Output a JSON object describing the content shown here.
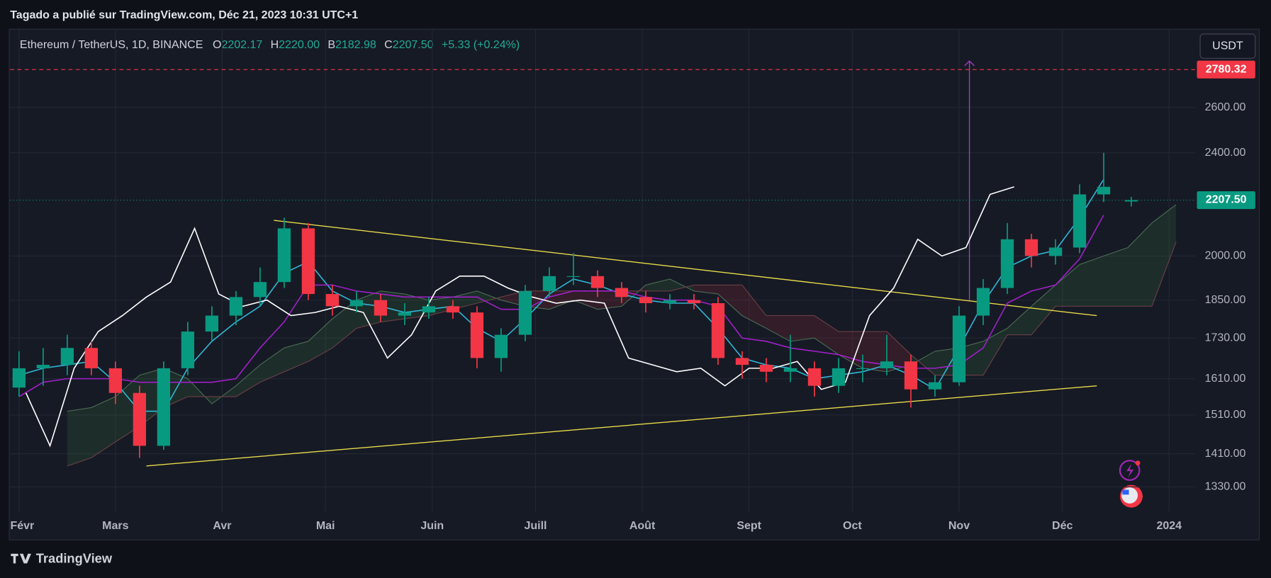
{
  "header": {
    "published": "Tagado a publié sur TradingView.com, Déc 21, 2023 10:31 UTC+1",
    "symbol": "Ethereum / TetherUS, 1D, BINANCE",
    "open_key": "O",
    "open": "2202.17",
    "high_key": "H",
    "high": "2220.00",
    "low_key": "B",
    "low": "2182.98",
    "close_key": "C",
    "close": "2207.50",
    "change": "+5.33 (+0.24%)",
    "currency": "USDT",
    "footer": "TradingView"
  },
  "chart_data": {
    "type": "candlestick",
    "ylog": true,
    "grid": true,
    "up_color": "#089981",
    "down_color": "#f23645",
    "xlim": [
      -2.6,
      341.6
    ],
    "xticks": [
      {
        "value": 0,
        "label": "Févr"
      },
      {
        "value": 28,
        "label": "Mars"
      },
      {
        "value": 59,
        "label": "Avr"
      },
      {
        "value": 89,
        "label": "Mai"
      },
      {
        "value": 120,
        "label": "Juin"
      },
      {
        "value": 150,
        "label": "Juill"
      },
      {
        "value": 181,
        "label": "Août"
      },
      {
        "value": 212,
        "label": "Sept"
      },
      {
        "value": 242,
        "label": "Oct"
      },
      {
        "value": 273,
        "label": "Nov"
      },
      {
        "value": 303,
        "label": "Déc"
      },
      {
        "value": 334,
        "label": "2024"
      }
    ],
    "ylim": [
      1273,
      2982
    ],
    "yticks": [
      {
        "value": 1330,
        "label": "1330.00"
      },
      {
        "value": 1410,
        "label": "1410.00"
      },
      {
        "value": 1510,
        "label": "1510.00"
      },
      {
        "value": 1610,
        "label": "1610.00"
      },
      {
        "value": 1730,
        "label": "1730.00"
      },
      {
        "value": 1850,
        "label": "1850.00"
      },
      {
        "value": 2000,
        "label": "2000.00"
      },
      {
        "value": 2400,
        "label": "2400.00"
      },
      {
        "value": 2600,
        "label": "2600.00"
      }
    ],
    "x": [
      0,
      7,
      14,
      21,
      28,
      35,
      42,
      49,
      56,
      63,
      70,
      77,
      84,
      91,
      98,
      105,
      112,
      119,
      126,
      133,
      140,
      147,
      154,
      161,
      168,
      175,
      182,
      189,
      196,
      203,
      210,
      217,
      224,
      231,
      238,
      245,
      252,
      259,
      266,
      273,
      280,
      287,
      294,
      301,
      308,
      315,
      323
    ],
    "open": [
      1585,
      1640,
      1650,
      1700,
      1640,
      1570,
      1430,
      1640,
      1750,
      1800,
      1860,
      1910,
      2100,
      1870,
      1830,
      1850,
      1800,
      1810,
      1830,
      1810,
      1670,
      1740,
      1880,
      1930,
      1930,
      1890,
      1860,
      1840,
      1850,
      1840,
      1670,
      1650,
      1630,
      1640,
      1590,
      1640,
      1640,
      1660,
      1580,
      1600,
      1800,
      1890,
      2060,
      2000,
      2030,
      2230,
      2202.17
    ],
    "high": [
      1690,
      1700,
      1740,
      1720,
      1660,
      1590,
      1660,
      1780,
      1830,
      1880,
      1960,
      2140,
      2120,
      1900,
      1880,
      1870,
      1840,
      1860,
      1850,
      1830,
      1760,
      1900,
      1960,
      2010,
      1950,
      1910,
      1880,
      1870,
      1870,
      1860,
      1690,
      1670,
      1740,
      1660,
      1670,
      1680,
      1740,
      1680,
      1620,
      1830,
      1920,
      2120,
      2080,
      2060,
      2270,
      2400,
      2220
    ],
    "low": [
      1560,
      1590,
      1620,
      1620,
      1540,
      1400,
      1420,
      1620,
      1720,
      1770,
      1830,
      1890,
      1850,
      1800,
      1810,
      1780,
      1770,
      1790,
      1790,
      1640,
      1630,
      1720,
      1860,
      1900,
      1860,
      1840,
      1810,
      1820,
      1820,
      1650,
      1610,
      1600,
      1600,
      1560,
      1570,
      1600,
      1620,
      1530,
      1560,
      1590,
      1770,
      1870,
      1960,
      1970,
      2010,
      2200,
      2182.98
    ],
    "close": [
      1640,
      1650,
      1700,
      1640,
      1570,
      1430,
      1640,
      1750,
      1800,
      1860,
      1910,
      2100,
      1870,
      1830,
      1850,
      1800,
      1810,
      1830,
      1810,
      1670,
      1740,
      1880,
      1930,
      1930,
      1890,
      1860,
      1840,
      1850,
      1840,
      1670,
      1650,
      1630,
      1640,
      1590,
      1640,
      1640,
      1660,
      1580,
      1600,
      1800,
      1890,
      2060,
      2000,
      2030,
      2230,
      2260,
      2207.5
    ],
    "cloud": {
      "up_color": "rgba(76,175,80,0.13)",
      "down_color": "rgba(242,54,69,0.13)",
      "a_color": "#4a6b52",
      "b_color": "#6b3f45",
      "x": [
        14,
        21,
        28,
        35,
        42,
        49,
        56,
        63,
        70,
        77,
        84,
        91,
        98,
        105,
        112,
        119,
        126,
        133,
        140,
        147,
        154,
        161,
        168,
        175,
        182,
        189,
        196,
        203,
        210,
        217,
        224,
        231,
        238,
        245,
        252,
        259,
        266,
        273,
        280,
        287,
        294,
        301,
        308,
        315,
        322,
        329,
        336
      ],
      "span_a": [
        1520,
        1530,
        1560,
        1620,
        1640,
        1610,
        1540,
        1590,
        1650,
        1700,
        1720,
        1790,
        1850,
        1880,
        1870,
        1850,
        1860,
        1880,
        1850,
        1830,
        1820,
        1850,
        1820,
        1830,
        1900,
        1920,
        1880,
        1870,
        1800,
        1760,
        1720,
        1730,
        1680,
        1640,
        1630,
        1650,
        1690,
        1700,
        1720,
        1760,
        1830,
        1900,
        1970,
        2000,
        2030,
        2120,
        2190
      ],
      "span_b": [
        1380,
        1400,
        1440,
        1480,
        1530,
        1560,
        1560,
        1560,
        1600,
        1630,
        1660,
        1700,
        1760,
        1780,
        1790,
        1800,
        1820,
        1840,
        1860,
        1880,
        1880,
        1880,
        1880,
        1880,
        1880,
        1880,
        1900,
        1900,
        1900,
        1800,
        1800,
        1800,
        1750,
        1750,
        1750,
        1680,
        1620,
        1620,
        1620,
        1740,
        1740,
        1830,
        1830,
        1830,
        1830,
        1830,
        2050
      ]
    },
    "lines": [
      {
        "color": "#2fb8d6",
        "x": [
          0,
          7,
          14,
          21,
          28,
          35,
          42,
          49,
          56,
          63,
          70,
          77,
          84,
          91,
          98,
          105,
          112,
          119,
          126,
          133,
          140,
          147,
          154,
          161,
          168,
          175,
          182,
          189,
          196,
          203,
          210,
          217,
          224,
          231,
          238,
          245,
          252,
          259,
          266,
          273,
          280,
          287,
          294,
          301,
          308,
          315
        ],
        "values": [
          1620,
          1640,
          1650,
          1660,
          1600,
          1520,
          1520,
          1640,
          1720,
          1780,
          1830,
          1940,
          1980,
          1880,
          1840,
          1830,
          1810,
          1820,
          1830,
          1760,
          1720,
          1790,
          1870,
          1920,
          1900,
          1870,
          1850,
          1840,
          1840,
          1760,
          1670,
          1650,
          1640,
          1610,
          1620,
          1630,
          1650,
          1620,
          1580,
          1700,
          1840,
          1960,
          2000,
          2020,
          2140,
          2290
        ]
      },
      {
        "color": "#a020c8",
        "x": [
          0,
          7,
          14,
          21,
          28,
          35,
          42,
          49,
          56,
          63,
          70,
          77,
          84,
          91,
          98,
          105,
          112,
          119,
          126,
          133,
          140,
          147,
          154,
          161,
          168,
          175,
          182,
          189,
          196,
          203,
          210,
          217,
          224,
          231,
          238,
          245,
          252,
          259,
          266,
          273,
          280,
          287,
          294,
          301,
          308,
          315
        ],
        "values": [
          1560,
          1600,
          1610,
          1610,
          1610,
          1600,
          1600,
          1600,
          1600,
          1610,
          1700,
          1780,
          1900,
          1900,
          1880,
          1870,
          1860,
          1860,
          1860,
          1860,
          1820,
          1820,
          1860,
          1880,
          1880,
          1880,
          1860,
          1850,
          1850,
          1830,
          1730,
          1720,
          1700,
          1690,
          1680,
          1660,
          1650,
          1640,
          1640,
          1650,
          1700,
          1840,
          1880,
          1900,
          1990,
          2150
        ]
      },
      {
        "color": "#ffffff",
        "x": [
          2,
          9,
          16,
          23,
          30,
          37,
          44,
          51,
          58,
          65,
          72,
          79,
          86,
          93,
          100,
          107,
          114,
          121,
          128,
          135,
          142,
          149,
          156,
          163,
          170,
          177,
          184,
          191,
          198,
          205,
          212,
          219,
          226,
          233,
          240,
          247,
          254,
          261,
          268,
          275,
          282,
          289
        ],
        "values": [
          1570,
          1430,
          1640,
          1750,
          1800,
          1860,
          1910,
          2100,
          1870,
          1830,
          1850,
          1800,
          1810,
          1830,
          1810,
          1670,
          1740,
          1880,
          1930,
          1930,
          1890,
          1860,
          1840,
          1850,
          1840,
          1670,
          1650,
          1630,
          1640,
          1590,
          1640,
          1640,
          1660,
          1580,
          1600,
          1800,
          1890,
          2060,
          2000,
          2030,
          2230,
          2260
        ]
      }
    ],
    "trendlines": [
      {
        "color": "#e8d94a",
        "x": [
          74,
          313
        ],
        "values": [
          2130,
          1800
        ]
      },
      {
        "color": "#e8d94a",
        "x": [
          37,
          313
        ],
        "values": [
          1380,
          1590
        ]
      }
    ],
    "arrow": {
      "color": "#a43bc4",
      "x": [
        276,
        276
      ],
      "values": [
        1850,
        2823
      ]
    },
    "price_lines": [
      {
        "value": 2780.32,
        "label": "2780.32",
        "color": "#f23645"
      },
      {
        "value": 2207.5,
        "label": "2207.50",
        "color": "#089981"
      }
    ]
  }
}
